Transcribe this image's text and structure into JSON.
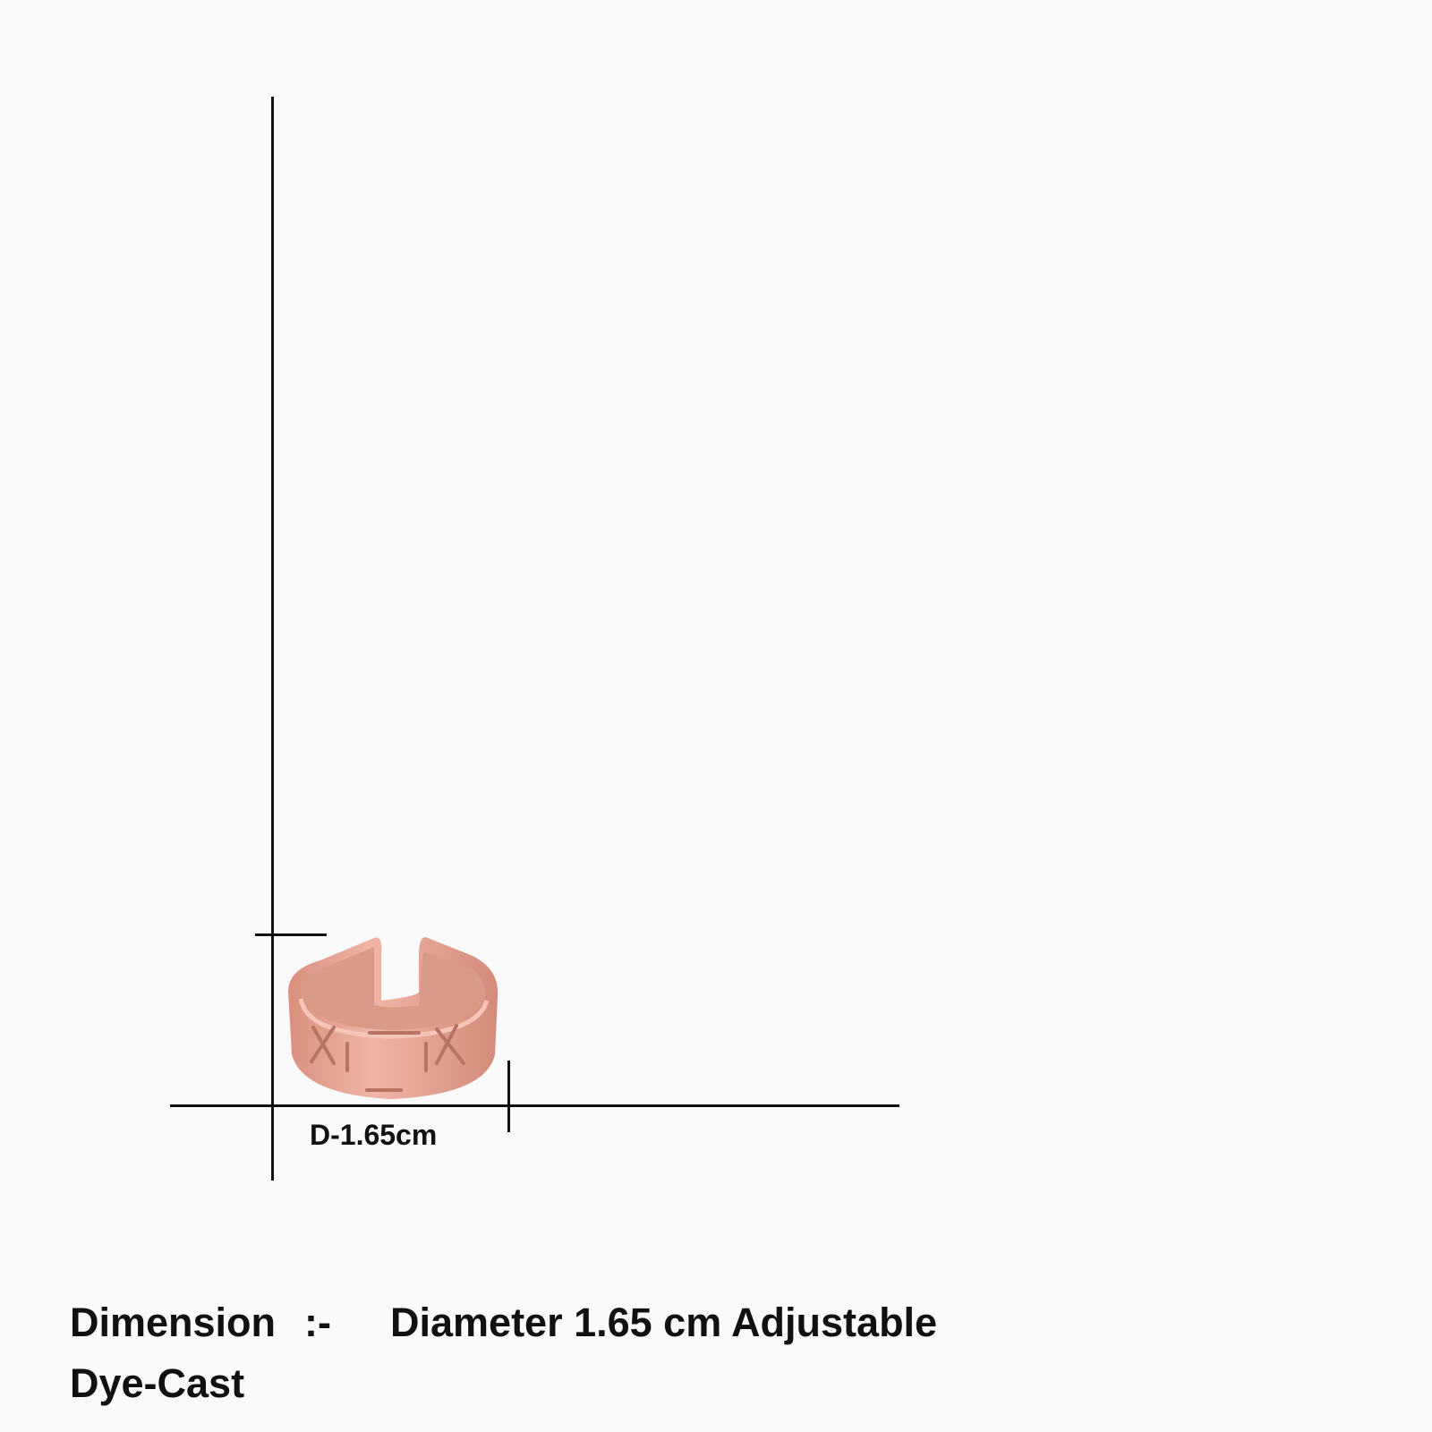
{
  "diagram": {
    "dimension_label": "D-1.65cm",
    "colors": {
      "ring": "#e8a795",
      "ring_shadow": "#c98573",
      "ring_inner": "#d99a88",
      "lines": "#111111",
      "background": "#fafafa"
    }
  },
  "specs": {
    "dimension_heading": "Dimension",
    "separator": ":-",
    "dimension_value": "Diameter 1.65 cm Adjustable",
    "material": "Dye-Cast"
  }
}
